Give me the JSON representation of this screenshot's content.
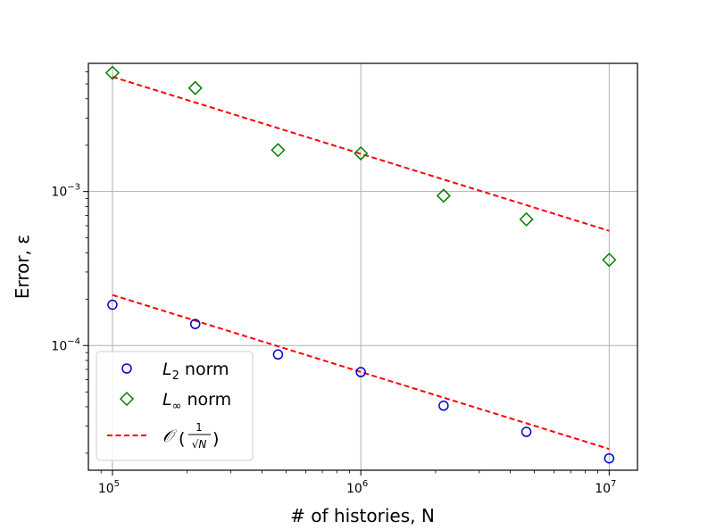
{
  "chart_data": {
    "type": "scatter",
    "xscale": "log",
    "yscale": "log",
    "xlim": [
      80000,
      13000000
    ],
    "ylim": [
      1.55e-05,
      0.0068
    ],
    "grid": true,
    "xlabel": "# of histories, N",
    "ylabel": "Error, ε",
    "x_ticks": [
      {
        "value": 100000,
        "base": "10",
        "exp": "5"
      },
      {
        "value": 1000000,
        "base": "10",
        "exp": "6"
      },
      {
        "value": 10000000,
        "base": "10",
        "exp": "7"
      }
    ],
    "y_ticks": [
      {
        "value": 0.0001,
        "base": "10",
        "exp": "−4"
      },
      {
        "value": 0.001,
        "base": "10",
        "exp": "−3"
      }
    ],
    "series": [
      {
        "name": "L2 norm",
        "legend_main": "L",
        "legend_sub": "2",
        "legend_rest": " norm",
        "marker": "circle",
        "color": "#0000cc",
        "x": [
          100000,
          215443,
          464159,
          1000000,
          2154435,
          4641589,
          10000000
        ],
        "y": [
          0.000184,
          0.000138,
          8.75e-05,
          6.72e-05,
          4.07e-05,
          2.75e-05,
          1.85e-05
        ]
      },
      {
        "name": "L∞ norm",
        "legend_main": "L",
        "legend_sub": "∞",
        "legend_rest": " norm",
        "marker": "diamond",
        "color": "#008000",
        "x": [
          100000,
          215443,
          464159,
          1000000,
          2154435,
          4641589,
          10000000
        ],
        "y": [
          0.0059,
          0.0047,
          0.00186,
          0.00177,
          0.00094,
          0.00066,
          0.00036
        ]
      }
    ],
    "reference_lines": [
      {
        "x": [
          100000,
          10000000
        ],
        "y": [
          0.00556,
          0.000556
        ]
      },
      {
        "x": [
          100000,
          10000000
        ],
        "y": [
          0.000213,
          2.13e-05
        ]
      }
    ],
    "reference_legend": {
      "label": "𝒪(1/√N)",
      "script_o": "𝒪",
      "numerator": "1",
      "denominator": "√N",
      "color": "#ff0000"
    },
    "legend_position": "lower-left"
  }
}
